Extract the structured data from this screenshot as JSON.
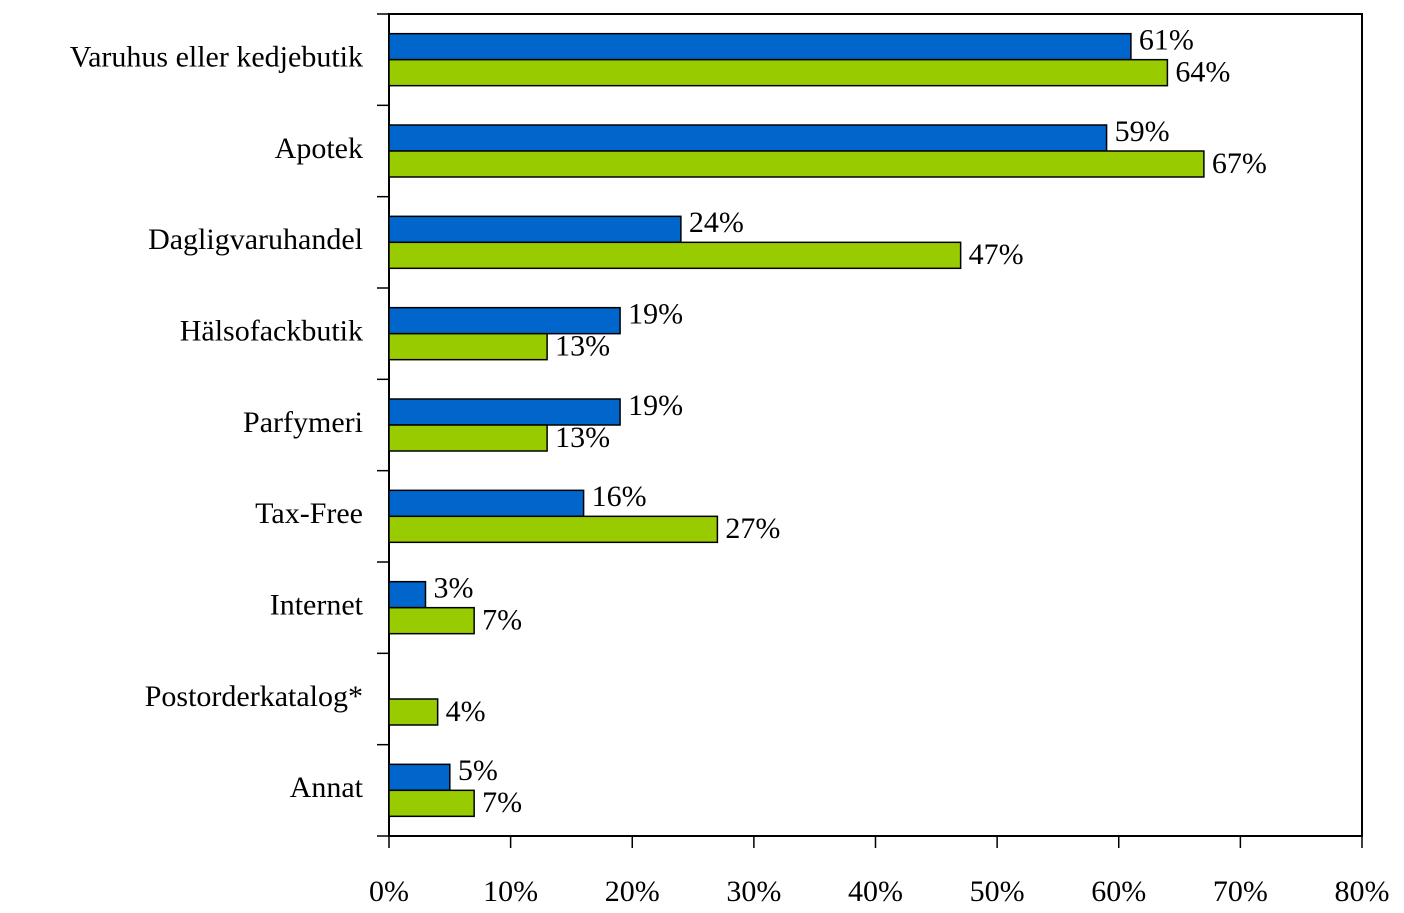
{
  "chart_data": {
    "type": "hbar",
    "categories": [
      "Varuhus eller kedjebutik",
      "Apotek",
      "Dagligvaruhandel",
      "Hälsofackbutik",
      "Parfymeri",
      "Tax-Free",
      "Internet",
      "Postorderkatalog*",
      "Annat"
    ],
    "series": [
      {
        "color": "#0066cc",
        "values": [
          61,
          59,
          24,
          19,
          19,
          16,
          3,
          null,
          5
        ],
        "value_labels": [
          "61%",
          "59%",
          "24%",
          "19%",
          "19%",
          "16%",
          "3%",
          null,
          "5%"
        ]
      },
      {
        "color": "#99cc00",
        "values": [
          64,
          67,
          47,
          13,
          13,
          27,
          7,
          4,
          7
        ],
        "value_labels": [
          "64%",
          "67%",
          "47%",
          "13%",
          "13%",
          "27%",
          "7%",
          "4%",
          "7%"
        ]
      }
    ],
    "xlim": [
      0,
      80
    ],
    "xticks": [
      {
        "value": 0,
        "label": "0%"
      },
      {
        "value": 10,
        "label": "10%"
      },
      {
        "value": 20,
        "label": "20%"
      },
      {
        "value": 30,
        "label": "30%"
      },
      {
        "value": 40,
        "label": "40%"
      },
      {
        "value": 50,
        "label": "50%"
      },
      {
        "value": 60,
        "label": "60%"
      },
      {
        "value": 70,
        "label": "70%"
      },
      {
        "value": 80,
        "label": "80%"
      }
    ],
    "grid": false
  }
}
